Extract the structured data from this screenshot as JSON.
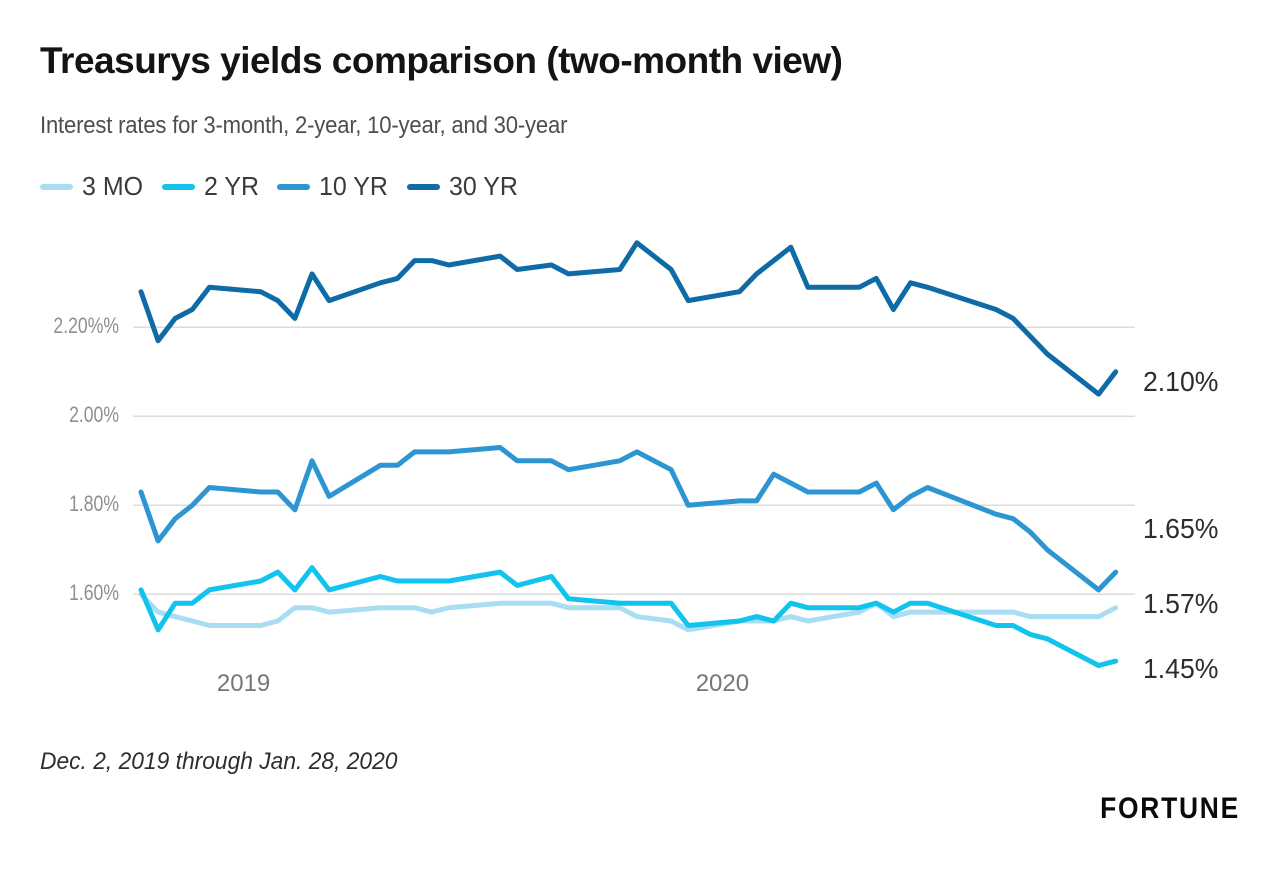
{
  "header": {
    "title": "Treasurys yields comparison (two-month view)",
    "subtitle": "Interest rates for 3-month, 2-year, 10-year, and 30-year"
  },
  "chart_data": {
    "type": "line",
    "title": "Treasurys yields comparison (two-month view)",
    "subtitle": "Interest rates for 3-month, 2-year, 10-year, and 30-year",
    "x": [
      "2019-12-02",
      "2019-12-03",
      "2019-12-04",
      "2019-12-05",
      "2019-12-06",
      "2019-12-09",
      "2019-12-10",
      "2019-12-11",
      "2019-12-12",
      "2019-12-13",
      "2019-12-16",
      "2019-12-17",
      "2019-12-18",
      "2019-12-19",
      "2019-12-20",
      "2019-12-23",
      "2019-12-24",
      "2019-12-26",
      "2019-12-27",
      "2019-12-30",
      "2019-12-31",
      "2020-01-02",
      "2020-01-03",
      "2020-01-06",
      "2020-01-07",
      "2020-01-08",
      "2020-01-09",
      "2020-01-10",
      "2020-01-13",
      "2020-01-14",
      "2020-01-15",
      "2020-01-16",
      "2020-01-17",
      "2020-01-21",
      "2020-01-22",
      "2020-01-23",
      "2020-01-24",
      "2020-01-27",
      "2020-01-28"
    ],
    "series": [
      {
        "name": "3 MO",
        "color": "#a8ddf4",
        "values": [
          1.6,
          1.56,
          1.55,
          1.54,
          1.53,
          1.53,
          1.54,
          1.57,
          1.57,
          1.56,
          1.57,
          1.57,
          1.57,
          1.56,
          1.57,
          1.58,
          1.58,
          1.58,
          1.57,
          1.57,
          1.55,
          1.54,
          1.52,
          1.54,
          1.54,
          1.54,
          1.55,
          1.54,
          1.56,
          1.58,
          1.55,
          1.56,
          1.56,
          1.56,
          1.56,
          1.55,
          1.55,
          1.55,
          1.57
        ]
      },
      {
        "name": "2 YR",
        "color": "#12c3ee",
        "values": [
          1.61,
          1.52,
          1.58,
          1.58,
          1.61,
          1.63,
          1.65,
          1.61,
          1.66,
          1.61,
          1.64,
          1.63,
          1.63,
          1.63,
          1.63,
          1.65,
          1.62,
          1.64,
          1.59,
          1.58,
          1.58,
          1.58,
          1.53,
          1.54,
          1.55,
          1.54,
          1.58,
          1.57,
          1.57,
          1.58,
          1.56,
          1.58,
          1.58,
          1.53,
          1.53,
          1.51,
          1.5,
          1.44,
          1.45
        ]
      },
      {
        "name": "10 YR",
        "color": "#2e95d3",
        "values": [
          1.83,
          1.72,
          1.77,
          1.8,
          1.84,
          1.83,
          1.83,
          1.79,
          1.9,
          1.82,
          1.89,
          1.89,
          1.92,
          1.92,
          1.92,
          1.93,
          1.9,
          1.9,
          1.88,
          1.9,
          1.92,
          1.88,
          1.8,
          1.81,
          1.81,
          1.87,
          1.85,
          1.83,
          1.83,
          1.85,
          1.79,
          1.82,
          1.84,
          1.78,
          1.77,
          1.74,
          1.7,
          1.61,
          1.65
        ]
      },
      {
        "name": "30 YR",
        "color": "#0e6ba6",
        "values": [
          2.28,
          2.17,
          2.22,
          2.24,
          2.29,
          2.28,
          2.26,
          2.22,
          2.32,
          2.26,
          2.3,
          2.31,
          2.35,
          2.35,
          2.34,
          2.36,
          2.33,
          2.34,
          2.32,
          2.33,
          2.39,
          2.33,
          2.26,
          2.28,
          2.32,
          2.35,
          2.38,
          2.29,
          2.29,
          2.31,
          2.24,
          2.3,
          2.29,
          2.24,
          2.22,
          2.18,
          2.14,
          2.05,
          2.1
        ]
      }
    ],
    "yticks": [
      {
        "label": "2.20%%",
        "value": 2.2
      },
      {
        "label": "2.00%",
        "value": 2.0
      },
      {
        "label": "1.80%",
        "value": 1.8
      },
      {
        "label": "1.60%",
        "value": 1.6
      }
    ],
    "xticks": [
      {
        "label": "2019",
        "date": "2019-12-08"
      },
      {
        "label": "2020",
        "date": "2020-01-05"
      }
    ],
    "end_labels": [
      {
        "label": "2.10%",
        "series": "30 YR"
      },
      {
        "label": "1.65%",
        "series": "10 YR"
      },
      {
        "label": "1.57%",
        "series": "3 MO"
      },
      {
        "label": "1.45%",
        "series": "2 YR"
      }
    ],
    "ylim": [
      1.43,
      2.41
    ],
    "grid": "horizontal",
    "legend_position": "top",
    "gridline_color": "#dcdcdc"
  },
  "footer": {
    "note": "Dec. 2, 2019 through Jan. 28, 2020",
    "brand": "FORTUNE"
  }
}
